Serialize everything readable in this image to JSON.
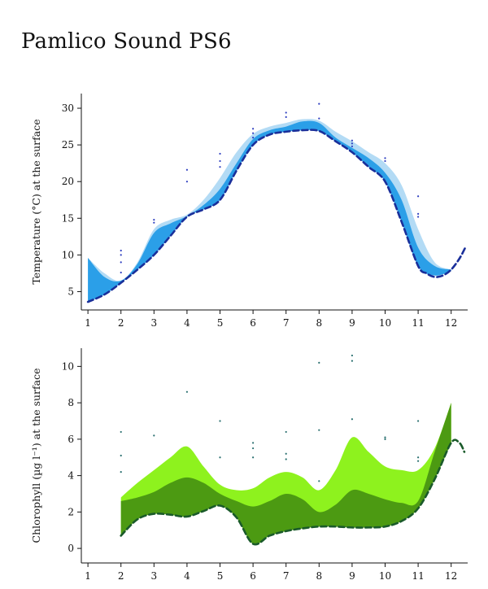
{
  "page": {
    "title": "Pamlico Sound PS6"
  },
  "chart_data": [
    {
      "type": "area",
      "ylabel": "Temperature (°C) at the surface",
      "xlim": [
        0.8,
        12.5
      ],
      "ylim": [
        2.5,
        32
      ],
      "xticks": [
        1,
        2,
        3,
        4,
        5,
        6,
        7,
        8,
        9,
        10,
        11,
        12
      ],
      "yticks": [
        5,
        10,
        15,
        20,
        25,
        30
      ],
      "colors": {
        "band_dark": "#2b9fe8",
        "band_light": "#b3dbf5",
        "line": "#1a2f9a",
        "points": "#3040c0"
      },
      "series": [
        {
          "role": "band_light",
          "x": [
            1,
            1.5,
            2,
            2.5,
            3,
            3.5,
            4,
            4.5,
            5,
            5.5,
            6,
            6.5,
            7,
            7.5,
            8,
            8.5,
            9,
            9.5,
            10,
            10.5,
            11,
            11.5,
            12
          ],
          "lower": [
            3.6,
            4.6,
            6.2,
            8.0,
            10.0,
            12.6,
            15.2,
            16.2,
            17.5,
            21.5,
            25.0,
            26.4,
            26.8,
            27.0,
            26.9,
            25.5,
            24.0,
            22.0,
            20.0,
            14.5,
            8.5,
            7.2,
            7.8
          ],
          "upper": [
            9.6,
            7.5,
            6.5,
            9.0,
            13.5,
            14.8,
            15.5,
            17.5,
            20.5,
            24.0,
            26.5,
            27.5,
            28.0,
            28.5,
            28.3,
            26.8,
            25.5,
            24.0,
            22.5,
            19.5,
            13.5,
            9.0,
            8.0
          ]
        },
        {
          "role": "band_dark",
          "x": [
            1,
            1.5,
            2,
            2.5,
            3,
            3.5,
            4,
            4.5,
            5,
            5.5,
            6,
            6.5,
            7,
            7.5,
            8,
            8.5,
            9,
            9.5,
            10,
            10.5,
            11,
            11.5,
            12
          ],
          "lower": [
            3.6,
            4.6,
            6.2,
            8.0,
            10.0,
            12.6,
            15.2,
            16.2,
            17.5,
            21.5,
            25.0,
            26.4,
            26.8,
            27.0,
            26.9,
            25.5,
            24.0,
            22.0,
            20.0,
            14.5,
            8.5,
            7.2,
            7.8
          ],
          "upper": [
            9.6,
            7.0,
            6.5,
            8.8,
            13.0,
            14.3,
            15.3,
            16.8,
            19.0,
            22.5,
            25.8,
            27.0,
            27.5,
            28.2,
            28.0,
            26.0,
            24.6,
            23.2,
            21.2,
            17.5,
            11.0,
            8.5,
            8.0
          ]
        },
        {
          "role": "line",
          "x": [
            1,
            1.5,
            2,
            2.5,
            3,
            3.5,
            4,
            4.5,
            5,
            5.5,
            6,
            6.5,
            7,
            7.5,
            8,
            8.5,
            9,
            9.5,
            10,
            10.5,
            11,
            11.25,
            11.5,
            11.75,
            12,
            12.25,
            12.45
          ],
          "y": [
            3.6,
            4.6,
            6.2,
            8.0,
            10.0,
            12.6,
            15.2,
            16.2,
            17.5,
            21.5,
            25.0,
            26.4,
            26.8,
            27.0,
            26.9,
            25.5,
            24.0,
            22.0,
            20.0,
            14.5,
            8.5,
            7.5,
            7.0,
            7.2,
            8.0,
            9.5,
            11.2
          ]
        }
      ],
      "points": [
        [
          2,
          10.6
        ],
        [
          2,
          10.0
        ],
        [
          2,
          9.0
        ],
        [
          2,
          7.6
        ],
        [
          3,
          14.8
        ],
        [
          3,
          14.4
        ],
        [
          4,
          21.6
        ],
        [
          4,
          20.0
        ],
        [
          5,
          23.8
        ],
        [
          5,
          22.8
        ],
        [
          5,
          22.0
        ],
        [
          6,
          27.2
        ],
        [
          6,
          26.6
        ],
        [
          6,
          26.0
        ],
        [
          7,
          29.4
        ],
        [
          7,
          28.8
        ],
        [
          8,
          30.6
        ],
        [
          8,
          28.6
        ],
        [
          9,
          25.6
        ],
        [
          9,
          25.2
        ],
        [
          9,
          24.8
        ],
        [
          10,
          23.2
        ],
        [
          10,
          22.8
        ],
        [
          11,
          18.0
        ],
        [
          11,
          15.6
        ],
        [
          11,
          15.2
        ]
      ]
    },
    {
      "type": "area",
      "ylabel": "Chlorophyll (µg l⁻¹) at the surface",
      "xlim": [
        0.8,
        12.5
      ],
      "ylim": [
        -0.8,
        11
      ],
      "xticks": [
        1,
        2,
        3,
        4,
        5,
        6,
        7,
        8,
        9,
        10,
        11,
        12
      ],
      "yticks": [
        0,
        2,
        4,
        6,
        8,
        10
      ],
      "colors": {
        "band_dark": "#4c9a12",
        "band_light": "#8ef21e",
        "line": "#1a5a2a",
        "points": "#2a7070"
      },
      "series": [
        {
          "role": "band_light",
          "x": [
            2,
            2.5,
            3,
            3.5,
            4,
            4.5,
            5,
            5.5,
            6,
            6.5,
            7,
            7.5,
            8,
            8.5,
            9,
            9.5,
            10,
            10.5,
            11,
            11.5,
            12
          ],
          "lower": [
            0.7,
            1.6,
            1.9,
            1.85,
            1.75,
            2.05,
            2.35,
            1.7,
            0.25,
            0.7,
            0.95,
            1.1,
            1.2,
            1.2,
            1.15,
            1.15,
            1.2,
            1.5,
            2.2,
            3.8,
            5.8
          ],
          "upper": [
            2.8,
            3.6,
            4.3,
            5.0,
            5.6,
            4.5,
            3.5,
            3.2,
            3.3,
            3.9,
            4.2,
            3.9,
            3.2,
            4.3,
            6.1,
            5.3,
            4.5,
            4.3,
            4.3,
            5.5,
            8.0
          ]
        },
        {
          "role": "band_dark",
          "x": [
            2,
            2.5,
            3,
            3.5,
            4,
            4.5,
            5,
            5.5,
            6,
            6.5,
            7,
            7.5,
            8,
            8.5,
            9,
            9.5,
            10,
            10.5,
            11,
            11.5,
            12
          ],
          "lower": [
            0.7,
            1.6,
            1.9,
            1.85,
            1.75,
            2.05,
            2.35,
            1.7,
            0.25,
            0.7,
            0.95,
            1.1,
            1.2,
            1.2,
            1.15,
            1.15,
            1.2,
            1.5,
            2.2,
            3.8,
            5.8
          ],
          "upper": [
            2.6,
            2.8,
            3.1,
            3.6,
            3.9,
            3.6,
            3.0,
            2.6,
            2.3,
            2.6,
            3.0,
            2.7,
            2.0,
            2.4,
            3.2,
            3.0,
            2.7,
            2.5,
            2.6,
            5.3,
            8.0
          ]
        },
        {
          "role": "line",
          "x": [
            2,
            2.5,
            3,
            3.5,
            4,
            4.5,
            5,
            5.5,
            6,
            6.5,
            7,
            7.5,
            8,
            8.5,
            9,
            9.5,
            10,
            10.5,
            11,
            11.5,
            12,
            12.25,
            12.4
          ],
          "y": [
            0.7,
            1.6,
            1.9,
            1.85,
            1.75,
            2.05,
            2.35,
            1.7,
            0.25,
            0.7,
            0.95,
            1.1,
            1.2,
            1.2,
            1.15,
            1.15,
            1.2,
            1.5,
            2.2,
            3.8,
            5.8,
            5.8,
            5.3
          ]
        }
      ],
      "points": [
        [
          2,
          6.4
        ],
        [
          2,
          5.1
        ],
        [
          2,
          4.2
        ],
        [
          3,
          6.2
        ],
        [
          4,
          8.6
        ],
        [
          5,
          7.0
        ],
        [
          5,
          5.0
        ],
        [
          6,
          5.8
        ],
        [
          6,
          5.5
        ],
        [
          6,
          5.0
        ],
        [
          7,
          6.4
        ],
        [
          7,
          5.2
        ],
        [
          7,
          4.9
        ],
        [
          8,
          10.2
        ],
        [
          8,
          6.5
        ],
        [
          8,
          3.7
        ],
        [
          9,
          10.6
        ],
        [
          9,
          10.3
        ],
        [
          9,
          7.1
        ],
        [
          10,
          6.1
        ],
        [
          10,
          6.0
        ],
        [
          11,
          7.0
        ],
        [
          11,
          5.0
        ],
        [
          11,
          4.8
        ]
      ]
    }
  ]
}
